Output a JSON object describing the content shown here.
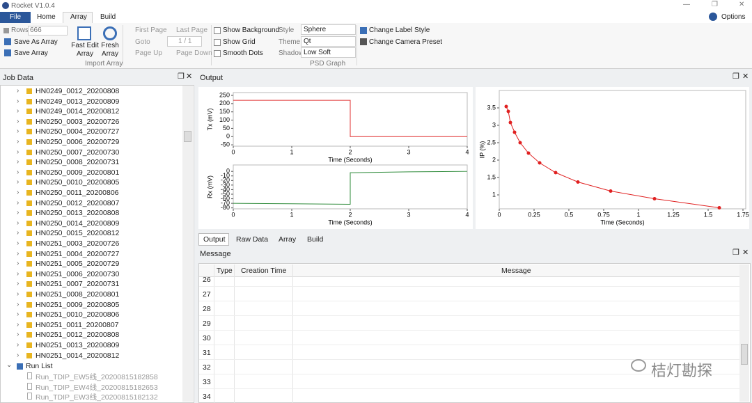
{
  "window": {
    "title": "Rocket V1.0.4",
    "options": "Options"
  },
  "ribbon": {
    "tabs": [
      "File",
      "Home",
      "Array",
      "Build"
    ],
    "rows_label": "Rows:",
    "rows": 666,
    "save_as": "Save As Array",
    "save": "Save Array",
    "fast_edit": "Fast Edit Array",
    "fresh": "Fresh Array",
    "import_group": "Import Array",
    "first_page": "First Page",
    "last_page": "Last Page",
    "goto": "Goto",
    "page_box": "1 / 1",
    "page_up": "Page Up",
    "page_down": "Page Down",
    "show_background": "Show Background",
    "show_grid": "Show Grid",
    "smooth_dots": "Smooth Dots",
    "style_label": "Style",
    "style": "Sphere",
    "theme_label": "Theme",
    "theme": "Qt",
    "shadow_label": "Shadow",
    "shadow": "Low Soft",
    "psd_group": "PSD Graph",
    "change_label_style": "Change Label Style",
    "change_camera": "Change Camera Preset"
  },
  "job_data": {
    "title": "Job Data",
    "items": [
      "HN0249_0012_20200808",
      "HN0249_0013_20200809",
      "HN0249_0014_20200812",
      "HN0250_0003_20200726",
      "HN0250_0004_20200727",
      "HN0250_0006_20200729",
      "HN0250_0007_20200730",
      "HN0250_0008_20200731",
      "HN0250_0009_20200801",
      "HN0250_0010_20200805",
      "HN0250_0011_20200806",
      "HN0250_0012_20200807",
      "HN0250_0013_20200808",
      "HN0250_0014_20200809",
      "HN0250_0015_20200812",
      "HN0251_0003_20200726",
      "HN0251_0004_20200727",
      "HN0251_0005_20200729",
      "HN0251_0006_20200730",
      "HN0251_0007_20200731",
      "HN0251_0008_20200801",
      "HN0251_0009_20200805",
      "HN0251_0010_20200806",
      "HN0251_0011_20200807",
      "HN0251_0012_20200808",
      "HN0251_0013_20200809",
      "HN0251_0014_20200812"
    ],
    "run_list": "Run List",
    "runs": [
      "Run_TDIP_EW5线_20200815182858",
      "Run_TDIP_EW4线_20200815182653",
      "Run_TDIP_EW3线_20200815182132"
    ]
  },
  "output": {
    "title": "Output",
    "tabs": [
      "Output",
      "Raw Data",
      "Array",
      "Build"
    ]
  },
  "message": {
    "title": "Message",
    "columns": [
      "Type",
      "Creation Time",
      "Message"
    ],
    "rows": [
      26,
      27,
      28,
      29,
      30,
      31,
      32,
      33,
      34
    ]
  },
  "watermark": "桔灯勘探",
  "chart_data": [
    {
      "type": "line",
      "x_label": "Time (Seconds)",
      "y_label": "Tx (mV)",
      "xlim": [
        0,
        4
      ],
      "xticks": [
        0,
        1,
        2,
        3,
        4
      ],
      "ylim": [
        -58,
        267
      ],
      "yticks": [
        -50,
        0,
        50,
        100,
        150,
        200,
        250
      ],
      "x": [
        0,
        2,
        2,
        4
      ],
      "series": [
        {
          "color": "#e03030",
          "values": [
            220,
            220,
            0,
            0
          ]
        }
      ]
    },
    {
      "type": "line",
      "x_label": "Time (Seconds)",
      "y_label": "Rx (mV)",
      "xlim": [
        0,
        4
      ],
      "xticks": [
        0,
        1,
        2,
        3,
        4
      ],
      "ylim": [
        -82,
        14
      ],
      "yticks": [
        -80,
        -70,
        -60,
        -50,
        -40,
        -30,
        -20,
        -10,
        0
      ],
      "x": [
        0,
        1,
        2,
        2,
        3,
        4
      ],
      "series": [
        {
          "color": "#2e8b3a",
          "values": [
            -70,
            -71,
            -72,
            -3,
            -1,
            0
          ]
        }
      ]
    },
    {
      "type": "line",
      "markers": true,
      "x_label": "Time (Seconds)",
      "y_label": "IP (%)",
      "xlim": [
        0,
        1.77
      ],
      "xticks": [
        0,
        0.25,
        0.5,
        0.75,
        1,
        1.25,
        1.5,
        1.75
      ],
      "ylim": [
        0.6,
        4.0
      ],
      "yticks": [
        1,
        1.5,
        2,
        2.5,
        3,
        3.5
      ],
      "x": [
        0.05,
        0.065,
        0.08,
        0.11,
        0.15,
        0.21,
        0.29,
        0.405,
        0.565,
        0.8,
        1.115,
        1.58
      ],
      "series": [
        {
          "color": "#e02020",
          "values": [
            3.54,
            3.4,
            3.08,
            2.8,
            2.5,
            2.2,
            1.92,
            1.64,
            1.37,
            1.11,
            0.89,
            0.63
          ]
        }
      ]
    }
  ]
}
